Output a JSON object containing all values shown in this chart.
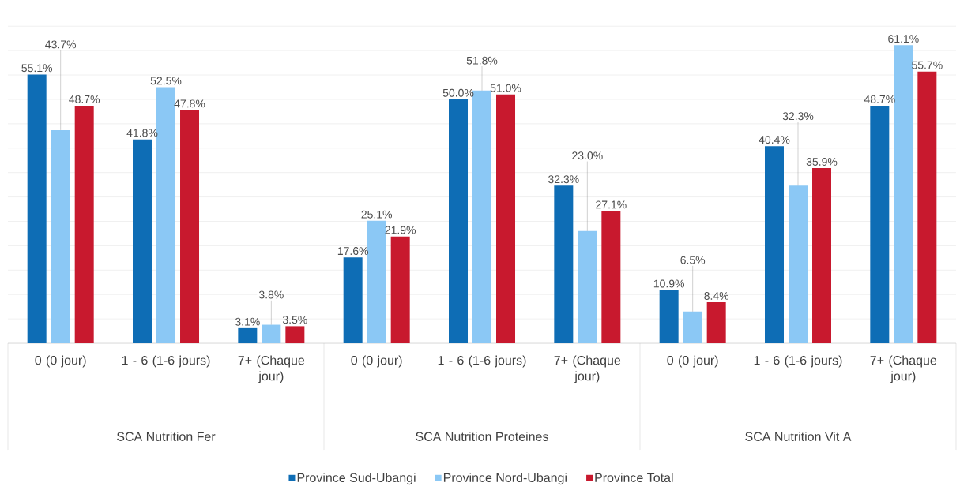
{
  "chart_data": {
    "type": "bar",
    "categories": [
      "0 (0 jour)",
      "1 - 6 (1-6 jours)",
      "7+ (Chaque jour)",
      "0 (0 jour)",
      "1 - 6 (1-6 jours)",
      "7+ (Chaque jour)",
      "0 (0 jour)",
      "1 - 6 (1-6 jours)",
      "7+ (Chaque jour)"
    ],
    "series": [
      {
        "name": "Province Sud-Ubangi",
        "color": "#0e6db5",
        "values": [
          55.1,
          41.8,
          3.1,
          17.6,
          50.0,
          32.3,
          10.9,
          40.4,
          48.7
        ],
        "value_labels": [
          "55.1%",
          "41.8%",
          "3.1%",
          "17.6%",
          "50.0%",
          "32.3%",
          "10.9%",
          "40.4%",
          "48.7%"
        ]
      },
      {
        "name": "Province Nord-Ubangi",
        "color": "#8bc8f5",
        "values": [
          43.7,
          52.5,
          3.8,
          25.1,
          51.8,
          23.0,
          6.5,
          32.3,
          61.1
        ],
        "value_labels": [
          "43.7%",
          "52.5%",
          "3.8%",
          "25.1%",
          "51.8%",
          "23.0%",
          "6.5%",
          "32.3%",
          "61.1%"
        ]
      },
      {
        "name": "Province Total",
        "color": "#c8192e",
        "values": [
          48.7,
          47.8,
          3.5,
          21.9,
          51.0,
          27.1,
          8.4,
          35.9,
          55.7
        ],
        "value_labels": [
          "48.7%",
          "47.8%",
          "3.5%",
          "21.9%",
          "51.0%",
          "27.1%",
          "8.4%",
          "35.9%",
          "55.7%"
        ]
      }
    ],
    "annotations": [
      "SCA Nutrition Fer",
      "SCA Nutrition Proteines",
      "SCA Nutrition Vit A"
    ],
    "grid": "y",
    "legend": "bottom",
    "tick_labels": "x"
  }
}
